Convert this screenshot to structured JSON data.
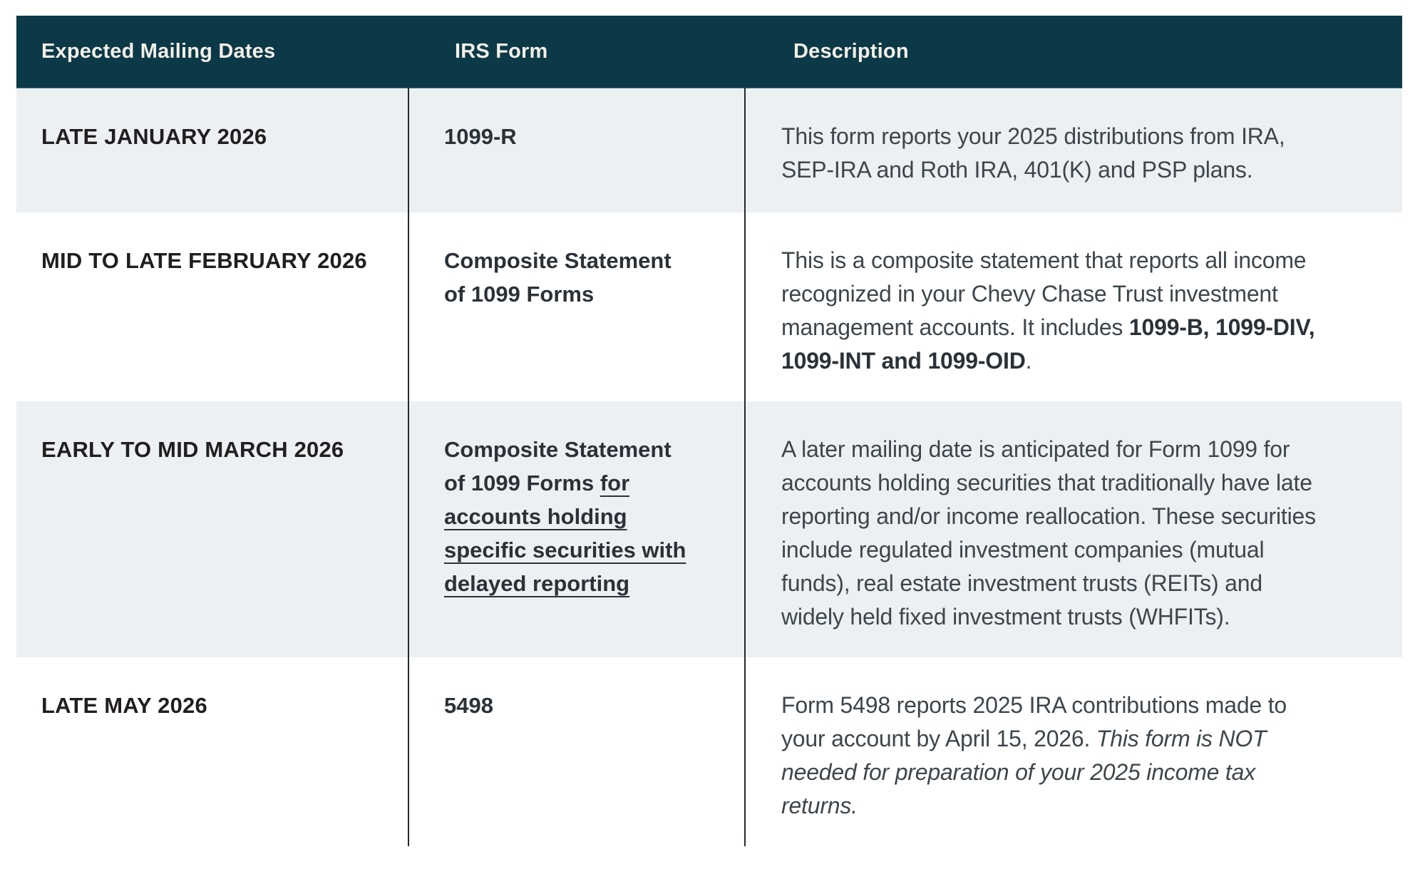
{
  "table": {
    "columns": [
      {
        "label": "Expected Mailing Dates"
      },
      {
        "label": "IRS Form"
      },
      {
        "label": "Description"
      }
    ],
    "rows": [
      {
        "mailing_date": "LATE JANUARY 2026",
        "irs_form": [
          {
            "text": "1099-R",
            "style": "bold"
          }
        ],
        "description": [
          {
            "text": "This form reports your 2025 distributions from IRA, SEP-IRA and Roth IRA, 401(K) and PSP plans.",
            "style": "normal"
          }
        ],
        "shaded": true
      },
      {
        "mailing_date": "MID TO LATE FEBRUARY 2026",
        "irs_form": [
          {
            "text": "Composite Statement of 1099 Forms",
            "style": "bold"
          }
        ],
        "description": [
          {
            "text": "This is a composite statement that reports all income recognized in your Chevy Chase Trust investment management accounts. It includes ",
            "style": "normal"
          },
          {
            "text": "1099-B, 1099-DIV, 1099-INT and 1099-OID",
            "style": "bold"
          },
          {
            "text": ".",
            "style": "normal"
          }
        ],
        "shaded": false
      },
      {
        "mailing_date": "EARLY TO MID MARCH 2026",
        "irs_form": [
          {
            "text": "Composite Statement of 1099 Forms ",
            "style": "bold"
          },
          {
            "text": "for accounts holding specific securities with delayed reporting ",
            "style": "bold underline"
          }
        ],
        "description": [
          {
            "text": "A later mailing date is anticipated for Form 1099 for accounts holding securities that traditionally have late reporting and/or income reallocation. These securities include regulated investment companies (mutual funds), real estate investment trusts (REITs) and widely held fixed investment trusts (WHFITs).",
            "style": "normal"
          }
        ],
        "shaded": true
      },
      {
        "mailing_date": "LATE MAY 2026",
        "irs_form": [
          {
            "text": "5498",
            "style": "bold"
          }
        ],
        "description": [
          {
            "text": "Form 5498 reports 2025 IRA contributions made to your account by April 15, 2026. ",
            "style": "normal"
          },
          {
            "text": "This form is NOT needed for preparation of your 2025 income tax returns.",
            "style": "italic"
          }
        ],
        "shaded": false
      }
    ]
  },
  "colors": {
    "header_bg": "#0c3947",
    "header_text": "#f3efe8",
    "shaded_row_bg": "#ecf0f3",
    "white_row_bg": "#ffffff",
    "column_divider": "#222a2e",
    "date_form_text": "#211e1f",
    "description_text": "#3d464b"
  }
}
